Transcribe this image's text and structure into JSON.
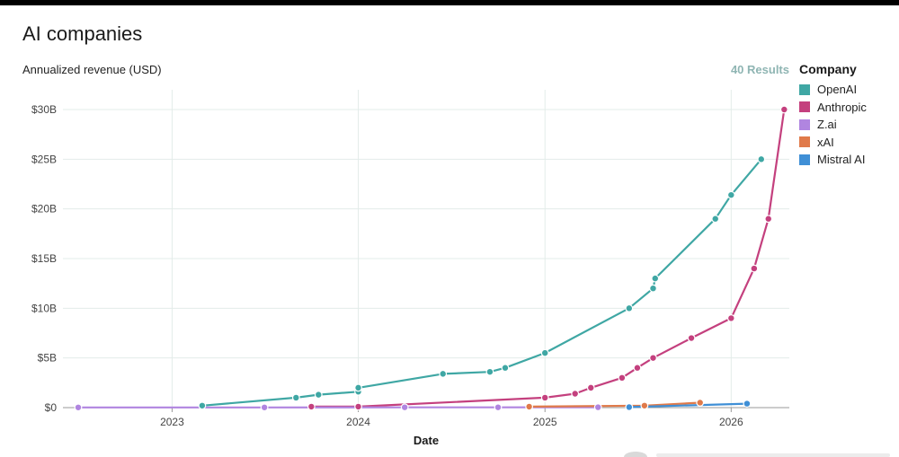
{
  "header": {
    "title": "AI companies",
    "results": "40 Results"
  },
  "legend": {
    "title": "Company"
  },
  "colors": {
    "OpenAI": "#3fa7a4",
    "Anthropic": "#c4407e",
    "Z.ai": "#b085e0",
    "xAI": "#e07a4a",
    "Mistral AI": "#3f8fd6",
    "grid": "#e3ece9",
    "axis": "#999999"
  },
  "chart_data": {
    "type": "line",
    "xlabel": "Date",
    "ylabel": "Annualized revenue (USD)",
    "x_type": "date",
    "xlim": [
      "2022-06-01",
      "2026-04-25"
    ],
    "ylim": [
      0,
      32
    ],
    "x_ticks": [
      {
        "date": "2023-01-01",
        "label": "2023"
      },
      {
        "date": "2024-01-01",
        "label": "2024"
      },
      {
        "date": "2025-01-01",
        "label": "2025"
      },
      {
        "date": "2026-01-01",
        "label": "2026"
      }
    ],
    "y_ticks": [
      {
        "value": 0,
        "label": "$0"
      },
      {
        "value": 5,
        "label": "$5B"
      },
      {
        "value": 10,
        "label": "$10B"
      },
      {
        "value": 15,
        "label": "$15B"
      },
      {
        "value": 20,
        "label": "$20B"
      },
      {
        "value": 25,
        "label": "$25B"
      },
      {
        "value": 30,
        "label": "$30B"
      }
    ],
    "grid": true,
    "legend_position": "right",
    "series": [
      {
        "name": "OpenAI",
        "points": [
          [
            "2023-03-01",
            0.2
          ],
          [
            "2023-09-01",
            1.0
          ],
          [
            "2023-10-15",
            1.3
          ],
          [
            "2024-01-01",
            1.6
          ],
          [
            "2024-01-01",
            2.0
          ],
          [
            "2024-06-15",
            3.4
          ],
          [
            "2024-09-15",
            3.6
          ],
          [
            "2024-10-15",
            4.0
          ],
          [
            "2025-01-01",
            5.5
          ],
          [
            "2025-06-15",
            10.0
          ],
          [
            "2025-08-01",
            12.0
          ],
          [
            "2025-08-05",
            13.0
          ],
          [
            "2025-12-01",
            19.0
          ],
          [
            "2026-01-01",
            21.4
          ],
          [
            "2026-03-01",
            25.0
          ]
        ]
      },
      {
        "name": "Anthropic",
        "points": [
          [
            "2023-10-01",
            0.1
          ],
          [
            "2024-01-01",
            0.1
          ],
          [
            "2025-01-01",
            1.0
          ],
          [
            "2025-03-01",
            1.4
          ],
          [
            "2025-04-01",
            2.0
          ],
          [
            "2025-06-01",
            3.0
          ],
          [
            "2025-07-01",
            4.0
          ],
          [
            "2025-08-01",
            5.0
          ],
          [
            "2025-10-15",
            7.0
          ],
          [
            "2026-01-01",
            9.0
          ],
          [
            "2026-02-15",
            14.0
          ],
          [
            "2026-03-15",
            19.0
          ],
          [
            "2026-04-15",
            30.0
          ]
        ]
      },
      {
        "name": "Z.ai",
        "points": [
          [
            "2022-07-01",
            0.02
          ],
          [
            "2023-07-01",
            0.02
          ],
          [
            "2024-04-01",
            0.03
          ],
          [
            "2024-10-01",
            0.03
          ],
          [
            "2025-04-15",
            0.04
          ]
        ]
      },
      {
        "name": "xAI",
        "points": [
          [
            "2024-12-01",
            0.1
          ],
          [
            "2025-07-15",
            0.2
          ],
          [
            "2025-11-01",
            0.5
          ]
        ]
      },
      {
        "name": "Mistral AI",
        "points": [
          [
            "2025-06-15",
            0.05
          ],
          [
            "2026-02-01",
            0.4
          ]
        ]
      }
    ]
  }
}
